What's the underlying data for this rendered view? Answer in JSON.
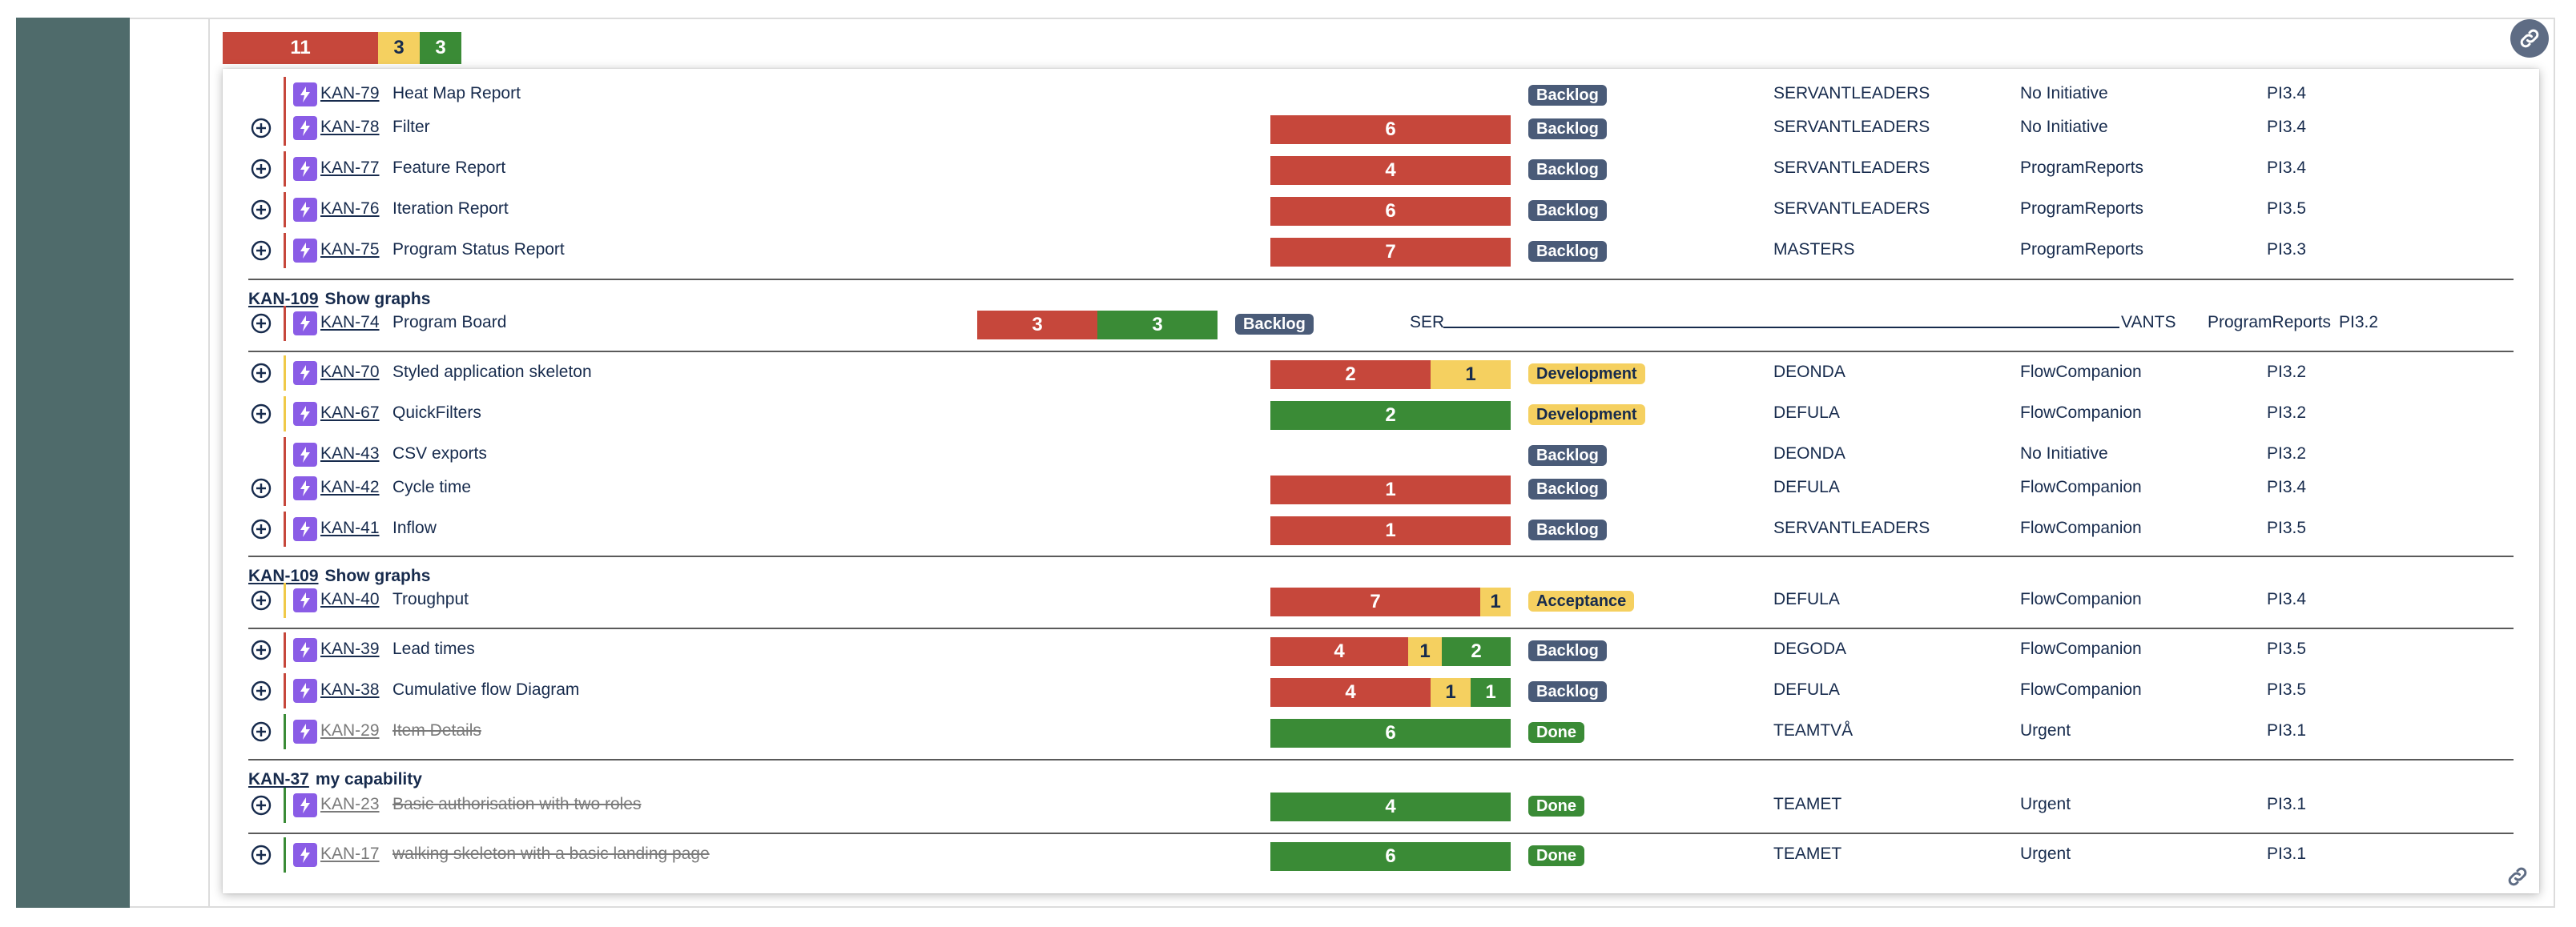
{
  "summary_bar": [
    {
      "value": "11",
      "color": "red"
    },
    {
      "value": "3",
      "color": "yellow"
    },
    {
      "value": "3",
      "color": "green"
    }
  ],
  "groups": [
    {
      "key": "KAN-109",
      "name": "Show graphs"
    },
    {
      "key": "KAN-109",
      "name": "Show graphs"
    },
    {
      "key": "KAN-37",
      "name": "my capability"
    }
  ],
  "rows": [
    {
      "key": "KAN-79",
      "title": "Heat Map Report",
      "status": "Backlog",
      "team": "SERVANTLEADERS",
      "initiative": "No Initiative",
      "pi": "PI3.4"
    },
    {
      "key": "KAN-78",
      "title": "Filter",
      "status": "Backlog",
      "team": "SERVANTLEADERS",
      "initiative": "No Initiative",
      "pi": "PI3.4",
      "bar": [
        "6"
      ]
    },
    {
      "key": "KAN-77",
      "title": "Feature Report",
      "status": "Backlog",
      "team": "SERVANTLEADERS",
      "initiative": "ProgramReports",
      "pi": "PI3.4",
      "bar": [
        "4"
      ]
    },
    {
      "key": "KAN-76",
      "title": "Iteration Report",
      "status": "Backlog",
      "team": "SERVANTLEADERS",
      "initiative": "ProgramReports",
      "pi": "PI3.5",
      "bar": [
        "6"
      ]
    },
    {
      "key": "KAN-75",
      "title": "Program Status Report",
      "status": "Backlog",
      "team": "MASTERS",
      "initiative": "ProgramReports",
      "pi": "PI3.3",
      "bar": [
        "7"
      ]
    },
    {
      "key": "KAN-74",
      "title": "Program Board",
      "status": "Backlog",
      "team_a": "SER",
      "team_b": "VANTS",
      "initiative": "ProgramReports",
      "pi": "PI3.2",
      "bar": [
        "3",
        "3"
      ]
    },
    {
      "key": "KAN-70",
      "title": "Styled application skeleton",
      "status": "Development",
      "team": "DEONDA",
      "initiative": "FlowCompanion",
      "pi": "PI3.2",
      "bar": [
        "2",
        "1"
      ]
    },
    {
      "key": "KAN-67",
      "title": "QuickFilters",
      "status": "Development",
      "team": "DEFULA",
      "initiative": "FlowCompanion",
      "pi": "PI3.2",
      "bar": [
        "2"
      ]
    },
    {
      "key": "KAN-43",
      "title": "CSV exports",
      "status": "Backlog",
      "team": "DEONDA",
      "initiative": "No Initiative",
      "pi": "PI3.2"
    },
    {
      "key": "KAN-42",
      "title": "Cycle time",
      "status": "Backlog",
      "team": "DEFULA",
      "initiative": "FlowCompanion",
      "pi": "PI3.4",
      "bar": [
        "1"
      ]
    },
    {
      "key": "KAN-41",
      "title": "Inflow",
      "status": "Backlog",
      "team": "SERVANTLEADERS",
      "initiative": "FlowCompanion",
      "pi": "PI3.5",
      "bar": [
        "1"
      ]
    },
    {
      "key": "KAN-40",
      "title": "Troughput",
      "status": "Acceptance",
      "team": "DEFULA",
      "initiative": "FlowCompanion",
      "pi": "PI3.4",
      "bar": [
        "7",
        "1"
      ]
    },
    {
      "key": "KAN-39",
      "title": "Lead times",
      "status": "Backlog",
      "team": "DEGODA",
      "initiative": "FlowCompanion",
      "pi": "PI3.5",
      "bar": [
        "4",
        "1",
        "2"
      ]
    },
    {
      "key": "KAN-38",
      "title": "Cumulative flow Diagram",
      "status": "Backlog",
      "team": "DEFULA",
      "initiative": "FlowCompanion",
      "pi": "PI3.5",
      "bar": [
        "4",
        "1",
        "1"
      ]
    },
    {
      "key": "KAN-29",
      "title": " Item Details",
      "status": "Done",
      "team": "TEAMTVÅ",
      "initiative": "Urgent",
      "pi": "PI3.1",
      "bar": [
        "6"
      ]
    },
    {
      "key": "KAN-23",
      "title": " Basic authorisation with two roles",
      "status": "Done",
      "team": "TEAMET",
      "initiative": "Urgent",
      "pi": "PI3.1",
      "bar": [
        "4"
      ]
    },
    {
      "key": "KAN-17",
      "title": " walking skeleton with a basic landing page",
      "status": "Done",
      "team": "TEAMET",
      "initiative": "Urgent",
      "pi": "PI3.1",
      "bar": [
        "6"
      ]
    }
  ],
  "colors": {
    "red": "#c6473b",
    "yellow": "#f5d060",
    "green": "#3a8b36",
    "story": "#8a5ce6",
    "sidebar": "#4f6b6b"
  },
  "icons": {
    "row_expand": "plus-circle-icon",
    "issue_type": "story-lightning-icon",
    "link": "link-icon"
  }
}
